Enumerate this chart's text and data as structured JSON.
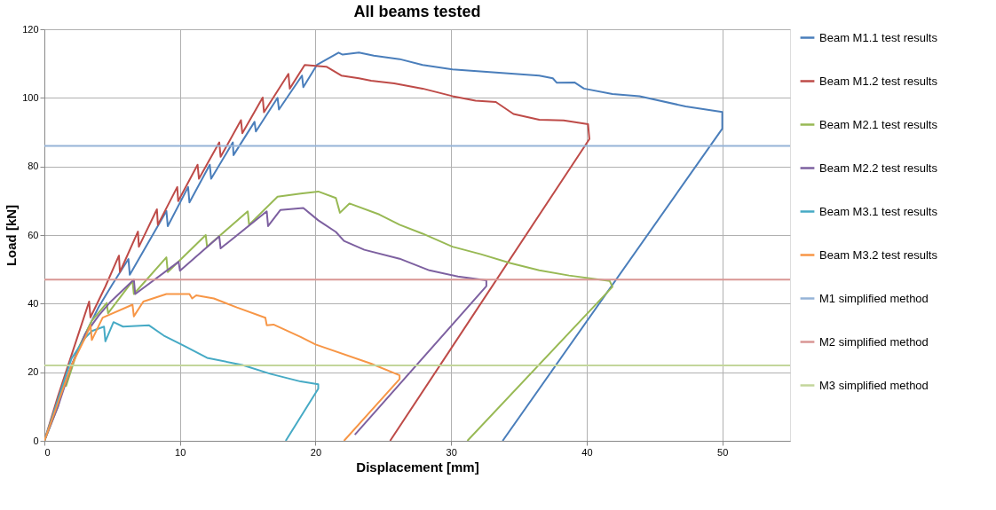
{
  "chart_data": {
    "type": "line",
    "title": "All beams tested",
    "xlabel": "Displacement [mm]",
    "ylabel": "Load [kN]",
    "xlim": [
      0,
      55
    ],
    "xticks": [
      0,
      10,
      20,
      30,
      40,
      50
    ],
    "ylim": [
      0,
      120
    ],
    "yticks": [
      0,
      20,
      40,
      60,
      80,
      100,
      120
    ],
    "grid": true,
    "legend": "right",
    "series": [
      {
        "name": "Beam M1.1 test results",
        "color": "#4a7ebb",
        "x": [
          0,
          1,
          2,
          3,
          4,
          5,
          6.2,
          6.3,
          9.0,
          9.1,
          10.6,
          10.7,
          12.2,
          12.3,
          13.9,
          13.95,
          15.5,
          15.6,
          17.2,
          17.3,
          19.0,
          19.1,
          20.1,
          21.7,
          22.0,
          23.2,
          24.3,
          26.2,
          27.9,
          30.1,
          33.3,
          36.5,
          37.5,
          37.8,
          39.1,
          39.8,
          41.9,
          43.9,
          47.3,
          50.0,
          50.0,
          33.8
        ],
        "values": [
          0,
          11,
          22,
          31,
          39,
          45.5,
          53,
          48.4,
          67,
          62.6,
          74,
          69.5,
          80.5,
          76.4,
          87,
          83.3,
          93,
          90.2,
          100,
          96.6,
          106.5,
          103.1,
          109.6,
          113.2,
          112.6,
          113.2,
          112.3,
          111.3,
          109.6,
          108.3,
          107.4,
          106.5,
          105.7,
          104.4,
          104.5,
          102.7,
          101.1,
          100.5,
          97.5,
          95.9,
          91.0,
          0
        ]
      },
      {
        "name": "Beam M1.2 test results",
        "color": "#be4b48",
        "x": [
          0,
          1,
          2,
          3,
          3.3,
          3.4,
          4.5,
          5.5,
          5.57,
          6.9,
          6.97,
          8.3,
          8.37,
          9.8,
          9.87,
          11.3,
          11.4,
          12.9,
          13.0,
          14.5,
          14.6,
          16.1,
          16.2,
          18.0,
          18.1,
          19.2,
          20.8,
          21.9,
          23.2,
          24.1,
          25.8,
          27.9,
          30.1,
          31.8,
          33.3,
          34.6,
          36.5,
          38.3,
          40.1,
          40.2,
          25.5
        ],
        "values": [
          0,
          13,
          25,
          37,
          40.6,
          36,
          45,
          54,
          49.2,
          61,
          56.6,
          67.5,
          63,
          74,
          69.9,
          80.5,
          76.4,
          87,
          82.8,
          93.5,
          89.7,
          100.1,
          95.8,
          107,
          102.7,
          109.6,
          109.1,
          106.5,
          105.7,
          105,
          104.2,
          102.7,
          100.5,
          99.2,
          98.8,
          95.3,
          93.6,
          93.4,
          92.3,
          88.0,
          0
        ]
      },
      {
        "name": "Beam M2.1 test results",
        "color": "#98b954",
        "x": [
          0,
          1,
          1.5,
          1.6,
          2.5,
          3.5,
          4.6,
          4.7,
          6.5,
          6.6,
          9.0,
          9.1,
          11.9,
          12.0,
          15.0,
          15.1,
          17.2,
          18.9,
          20.2,
          21.5,
          21.8,
          22.5,
          24.7,
          26.2,
          27.9,
          30.1,
          32.2,
          34.4,
          36.5,
          38.7,
          41.7,
          41.9,
          31.2
        ],
        "values": [
          0,
          10,
          17.3,
          16,
          27,
          35,
          40.2,
          37.2,
          46.6,
          42.8,
          53.5,
          49.2,
          60,
          56.6,
          66.9,
          63,
          71.2,
          72.1,
          72.7,
          70.8,
          66.5,
          69.2,
          66,
          63,
          60.4,
          56.6,
          54.4,
          51.8,
          49.7,
          48.2,
          46.6,
          44.9,
          0
        ]
      },
      {
        "name": "Beam M2.2 test results",
        "color": "#7d60a0",
        "x": [
          0,
          1,
          2,
          3,
          4,
          4.8,
          6.6,
          6.7,
          9.9,
          10.0,
          12.9,
          13.0,
          16.4,
          16.5,
          17.4,
          19.1,
          20.2,
          21.5,
          22.1,
          23.6,
          26.2,
          28.4,
          30.5,
          32.6,
          32.6,
          22.9
        ],
        "values": [
          0,
          10,
          22,
          31,
          36.5,
          40.2,
          47,
          42.8,
          52.2,
          49.6,
          59.6,
          56.1,
          66.9,
          62.6,
          67.3,
          67.9,
          64.3,
          60.9,
          58.3,
          55.7,
          53.1,
          49.7,
          47.9,
          46.8,
          45.1,
          1.8
        ]
      },
      {
        "name": "Beam M3.1 test results",
        "color": "#46aac5",
        "x": [
          0,
          1,
          2,
          3,
          3.5,
          4.4,
          4.5,
          5.1,
          5.8,
          7.7,
          8.8,
          10.3,
          12.0,
          14.6,
          16.7,
          18.9,
          20.2,
          20.2,
          17.8
        ],
        "values": [
          0,
          12,
          24,
          30,
          32,
          33.3,
          29,
          34.6,
          33.3,
          33.7,
          30.7,
          27.7,
          24.2,
          22.1,
          19.5,
          17.3,
          16.5,
          15.2,
          0
        ]
      },
      {
        "name": "Beam M3.2 test results",
        "color": "#f79646",
        "x": [
          0,
          1,
          2,
          3,
          3.4,
          3.5,
          4.3,
          6.5,
          6.6,
          7.3,
          9.0,
          10.7,
          10.9,
          11.2,
          12.5,
          14.2,
          16.3,
          16.4,
          16.9,
          18.9,
          20.0,
          24.1,
          26.2,
          26.2,
          22.1
        ],
        "values": [
          0,
          11,
          22,
          30,
          33.7,
          29.4,
          35.9,
          39.7,
          36.3,
          40.6,
          42.8,
          42.8,
          41.5,
          42.4,
          41.5,
          38.9,
          35.9,
          33.7,
          33.9,
          30.3,
          28.1,
          22.5,
          19.1,
          18.0,
          0
        ]
      }
    ],
    "ref_lines": [
      {
        "axis": "y",
        "value": 86,
        "label": "M1 simplified method",
        "color": "#95b3d7"
      },
      {
        "axis": "y",
        "value": 47,
        "label": "M2 simplified method",
        "color": "#d99694"
      },
      {
        "axis": "y",
        "value": 22,
        "label": "M3 simplified method",
        "color": "#c3d69b"
      }
    ]
  }
}
